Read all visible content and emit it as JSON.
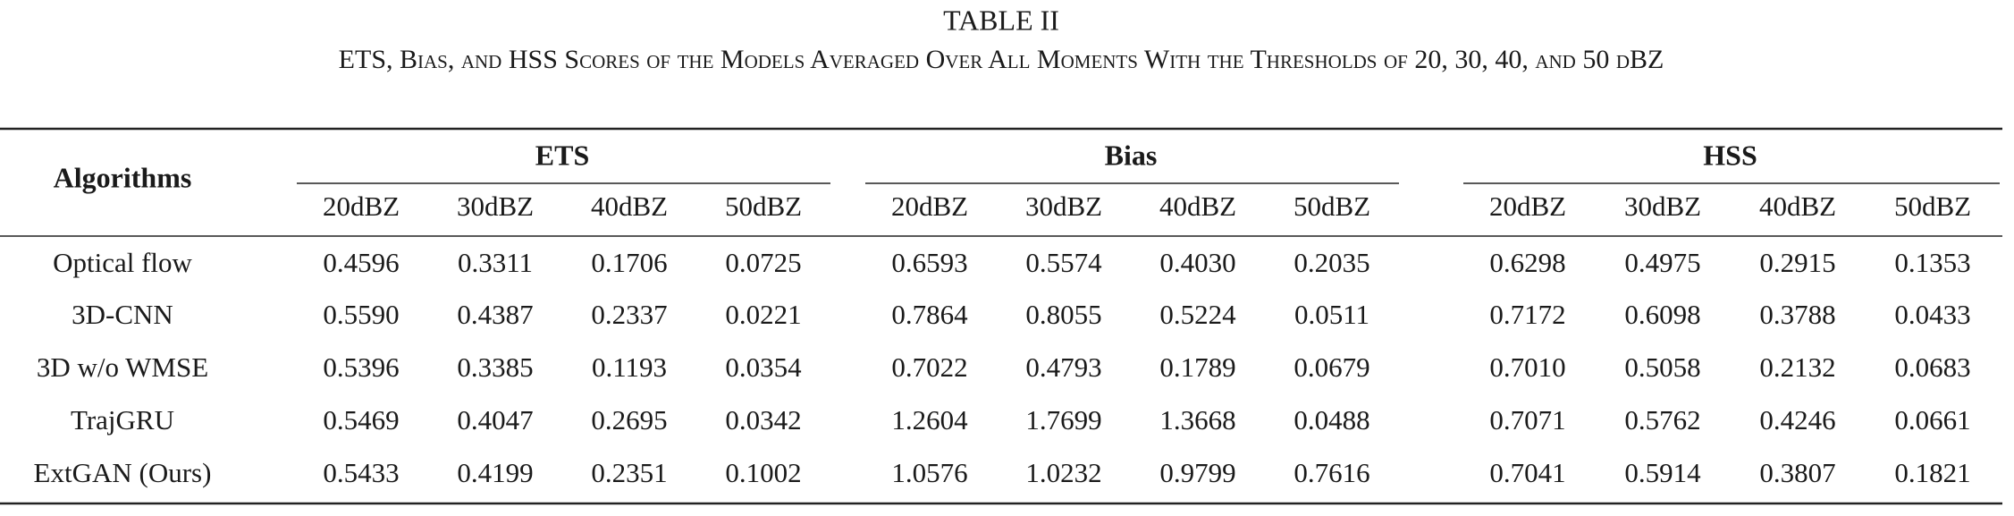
{
  "title": "TABLE II",
  "subtitle": "ETS, Bias, and HSS Scores of the Models Averaged Over All Moments With the Thresholds of 20, 30, 40, and 50 dBZ",
  "table": {
    "corner": "Algorithms",
    "groups": [
      {
        "name": "ETS",
        "columns": [
          "20dBZ",
          "30dBZ",
          "40dBZ",
          "50dBZ"
        ]
      },
      {
        "name": "Bias",
        "columns": [
          "20dBZ",
          "30dBZ",
          "40dBZ",
          "50dBZ"
        ]
      },
      {
        "name": "HSS",
        "columns": [
          "20dBZ",
          "30dBZ",
          "40dBZ",
          "50dBZ"
        ]
      }
    ],
    "rows": [
      {
        "name": "Optical flow",
        "cells": [
          "0.4596",
          "0.3311",
          "0.1706",
          "0.0725",
          "0.6593",
          "0.5574",
          "0.4030",
          "0.2035",
          "0.6298",
          "0.4975",
          "0.2915",
          "0.1353"
        ]
      },
      {
        "name": "3D-CNN",
        "cells": [
          "0.5590",
          "0.4387",
          "0.2337",
          "0.0221",
          "0.7864",
          "0.8055",
          "0.5224",
          "0.0511",
          "0.7172",
          "0.6098",
          "0.3788",
          "0.0433"
        ]
      },
      {
        "name": "3D w/o WMSE",
        "cells": [
          "0.5396",
          "0.3385",
          "0.1193",
          "0.0354",
          "0.7022",
          "0.4793",
          "0.1789",
          "0.0679",
          "0.7010",
          "0.5058",
          "0.2132",
          "0.0683"
        ]
      },
      {
        "name": "TrajGRU",
        "cells": [
          "0.5469",
          "0.4047",
          "0.2695",
          "0.0342",
          "1.2604",
          "1.7699",
          "1.3668",
          "0.0488",
          "0.7071",
          "0.5762",
          "0.4246",
          "0.0661"
        ]
      },
      {
        "name": "ExtGAN (Ours)",
        "cells": [
          "0.5433",
          "0.4199",
          "0.2351",
          "0.1002",
          "1.0576",
          "1.0232",
          "0.9799",
          "0.7616",
          "0.7041",
          "0.5914",
          "0.3807",
          "0.1821"
        ]
      }
    ]
  }
}
